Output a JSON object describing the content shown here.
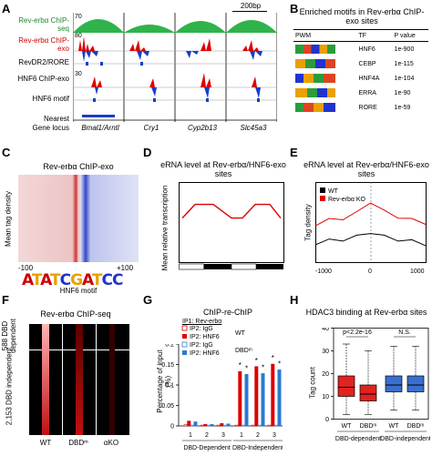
{
  "panels": {
    "a": "A",
    "b": "B",
    "c": "C",
    "d": "D",
    "e": "E",
    "f": "F",
    "g": "G",
    "h": "H"
  },
  "panelA": {
    "scalebar": "200bp",
    "tracks": [
      "Rev-erbα ChIP-seq",
      "Rev-erbα ChIP-exo",
      "RevDR2/RORE",
      "HNF6 ChIP-exo",
      "HNF6 motif"
    ],
    "scale_values": {
      "chipseq": "70",
      "chipexo": "80",
      "hnf6": "30"
    },
    "nearest_label": "Nearest",
    "locus_label": "Gene locus",
    "genes": [
      "Bmal1/Arntl",
      "Cry1",
      "Cyp2b13",
      "Slc45a3"
    ]
  },
  "panelB": {
    "title": "Enriched motifs in Rev-erbα ChIP-exo sites",
    "headers": [
      "PWM",
      "TF",
      "P value"
    ],
    "rows": [
      {
        "tf": "HNF6",
        "p": "1e-900"
      },
      {
        "tf": "CEBP",
        "p": "1e-115"
      },
      {
        "tf": "HNF4A",
        "p": "1e-104"
      },
      {
        "tf": "ERRA",
        "p": "1e-90"
      },
      {
        "tf": "RORE",
        "p": "1e-59"
      }
    ]
  },
  "panelC": {
    "title": "Rev-erbα ChIP-exo",
    "ylabel": "Mean tag density",
    "left": "-100",
    "right": "+100",
    "motif_logo": "ATATCGATCC",
    "motif_label": "HNF6 motif"
  },
  "panelD": {
    "title": "eRNA level at Rev-erbα/HNF6-exo sites",
    "ylabel": "Mean relative transcription"
  },
  "panelE": {
    "title": "eRNA level at Rev-erbα/HNF6-exo sites",
    "ylabel": "Tag density",
    "legend": [
      "WT",
      "Rev-erbα KO"
    ],
    "xticks": [
      "-1000",
      "0",
      "1000"
    ]
  },
  "panelF": {
    "title": "Rev-erbα ChIP-seq",
    "dep_label": "588 DBD dependent",
    "indep_label": "2,153 DBD independent",
    "cols": [
      "WT",
      "DBDᵐ",
      "αKO"
    ]
  },
  "panelG": {
    "title": "ChIP-re-ChIP",
    "ip1": "IP1: Rev-erbα",
    "legend": [
      "IP2: IgG",
      "IP2: HNF6",
      "IP2: IgG",
      "IP2: HNF6"
    ],
    "wt": "WT",
    "dbd": "DBDᵐ",
    "ylabel": "Percentage of input (%)",
    "groups": [
      "DBD-Dependent",
      "DBD-Independent"
    ],
    "ticks": [
      "1",
      "2",
      "3",
      "1",
      "2",
      "3"
    ],
    "yticks": [
      "0",
      "0.05",
      "0.1",
      "0.15",
      "0.2"
    ],
    "star": "*"
  },
  "panelH": {
    "title": "HDAC3 binding at Rev-erbα sites",
    "ylabel": "Tag count",
    "pval": "p<2.2e-16",
    "ns": "N.S.",
    "cats": [
      "WT",
      "DBDᵐ",
      "WT",
      "DBDᵐ"
    ],
    "groups": [
      "DBD-dependent",
      "DBD-independent"
    ],
    "yticks": [
      "0",
      "10",
      "20",
      "30",
      "40"
    ]
  },
  "chart_data": [
    {
      "type": "line",
      "panel": "D",
      "title": "eRNA level at Rev-erbα/HNF6-exo sites",
      "ylabel": "Mean relative transcription",
      "series": [
        {
          "values": [
            0.55,
            0.72,
            0.72,
            0.55,
            0.55,
            0.72,
            0.72,
            0.55
          ]
        }
      ]
    },
    {
      "type": "line",
      "panel": "E",
      "title": "eRNA level at Rev-erbα/HNF6-exo sites",
      "ylabel": "Tag density",
      "x": [
        -1000,
        -750,
        -500,
        -250,
        0,
        250,
        500,
        750,
        1000
      ],
      "xlim": [
        -1000,
        1000
      ],
      "series": [
        {
          "name": "WT",
          "values": [
            0.25,
            0.28,
            0.3,
            0.33,
            0.4,
            0.33,
            0.3,
            0.27,
            0.24
          ]
        },
        {
          "name": "Rev-erbα KO",
          "values": [
            0.5,
            0.55,
            0.58,
            0.64,
            0.8,
            0.66,
            0.6,
            0.55,
            0.52
          ]
        }
      ]
    },
    {
      "type": "bar",
      "panel": "G",
      "title": "ChIP-re-ChIP",
      "categories": [
        "1",
        "2",
        "3",
        "1",
        "2",
        "3"
      ],
      "ylabel": "Percentage of input (%)",
      "ylim": [
        0,
        0.2
      ],
      "series": [
        {
          "name": "IP2: IgG",
          "values": [
            0.003,
            0.002,
            0.002,
            0.002,
            0.002,
            0.002
          ]
        },
        {
          "name": "IP2: HNF6",
          "values": [
            0.012,
            0.004,
            0.006,
            0.133,
            0.145,
            0.151
          ]
        },
        {
          "name": "IP2: IgG",
          "values": [
            0.002,
            0.002,
            0.002,
            0.002,
            0.002,
            0.002
          ]
        },
        {
          "name": "IP2: HNF6",
          "values": [
            0.01,
            0.004,
            0.005,
            0.126,
            0.128,
            0.137
          ]
        }
      ]
    },
    {
      "type": "box",
      "panel": "H",
      "title": "HDAC3 binding at Rev-erbα sites",
      "categories": [
        "WT",
        "DBDᵐ",
        "WT",
        "DBDᵐ"
      ],
      "ylabel": "Tag count",
      "ylim": [
        0,
        40
      ],
      "boxes": [
        {
          "min": 2,
          "q1": 10,
          "median": 14,
          "q3": 19,
          "max": 33
        },
        {
          "min": 2,
          "q1": 8,
          "median": 11,
          "q3": 15,
          "max": 30
        },
        {
          "min": 4,
          "q1": 12,
          "median": 15,
          "q3": 19,
          "max": 32
        },
        {
          "min": 4,
          "q1": 12,
          "median": 15,
          "q3": 19,
          "max": 32
        }
      ]
    }
  ]
}
